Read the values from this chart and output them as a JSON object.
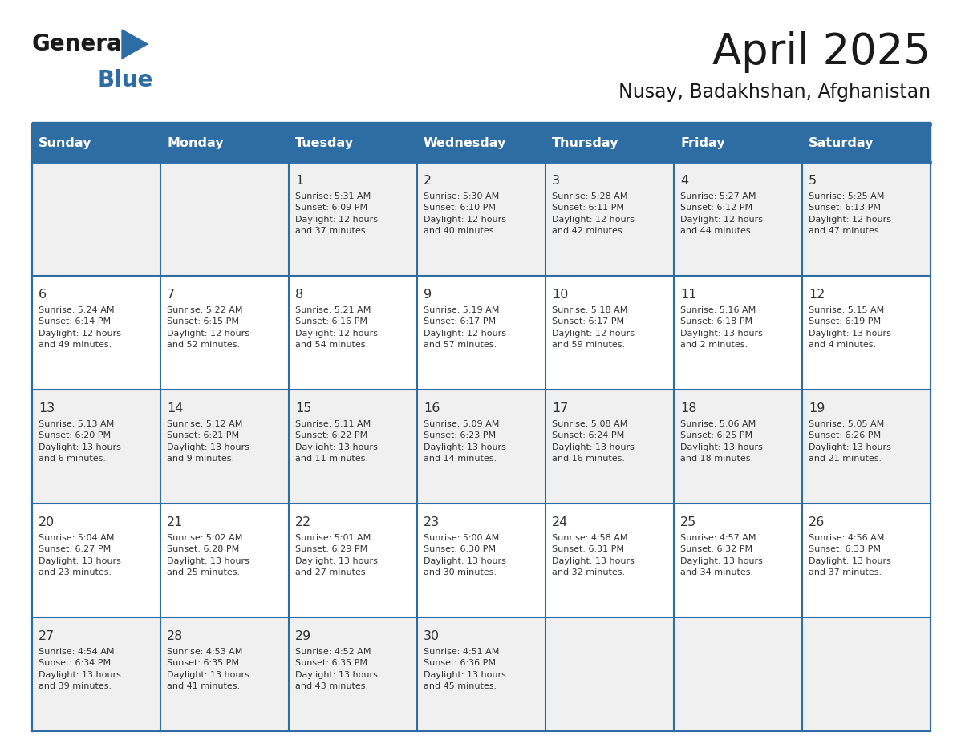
{
  "title": "April 2025",
  "subtitle": "Nusay, Badakhshan, Afghanistan",
  "header_bg": "#2E6DA4",
  "header_text_color": "#FFFFFF",
  "cell_bg_odd": "#F0F0F0",
  "cell_bg_even": "#FFFFFF",
  "border_color": "#2E6DA4",
  "text_color": "#333333",
  "days_of_week": [
    "Sunday",
    "Monday",
    "Tuesday",
    "Wednesday",
    "Thursday",
    "Friday",
    "Saturday"
  ],
  "calendar_data": [
    [
      {
        "day": "",
        "info": ""
      },
      {
        "day": "",
        "info": ""
      },
      {
        "day": "1",
        "info": "Sunrise: 5:31 AM\nSunset: 6:09 PM\nDaylight: 12 hours\nand 37 minutes."
      },
      {
        "day": "2",
        "info": "Sunrise: 5:30 AM\nSunset: 6:10 PM\nDaylight: 12 hours\nand 40 minutes."
      },
      {
        "day": "3",
        "info": "Sunrise: 5:28 AM\nSunset: 6:11 PM\nDaylight: 12 hours\nand 42 minutes."
      },
      {
        "day": "4",
        "info": "Sunrise: 5:27 AM\nSunset: 6:12 PM\nDaylight: 12 hours\nand 44 minutes."
      },
      {
        "day": "5",
        "info": "Sunrise: 5:25 AM\nSunset: 6:13 PM\nDaylight: 12 hours\nand 47 minutes."
      }
    ],
    [
      {
        "day": "6",
        "info": "Sunrise: 5:24 AM\nSunset: 6:14 PM\nDaylight: 12 hours\nand 49 minutes."
      },
      {
        "day": "7",
        "info": "Sunrise: 5:22 AM\nSunset: 6:15 PM\nDaylight: 12 hours\nand 52 minutes."
      },
      {
        "day": "8",
        "info": "Sunrise: 5:21 AM\nSunset: 6:16 PM\nDaylight: 12 hours\nand 54 minutes."
      },
      {
        "day": "9",
        "info": "Sunrise: 5:19 AM\nSunset: 6:17 PM\nDaylight: 12 hours\nand 57 minutes."
      },
      {
        "day": "10",
        "info": "Sunrise: 5:18 AM\nSunset: 6:17 PM\nDaylight: 12 hours\nand 59 minutes."
      },
      {
        "day": "11",
        "info": "Sunrise: 5:16 AM\nSunset: 6:18 PM\nDaylight: 13 hours\nand 2 minutes."
      },
      {
        "day": "12",
        "info": "Sunrise: 5:15 AM\nSunset: 6:19 PM\nDaylight: 13 hours\nand 4 minutes."
      }
    ],
    [
      {
        "day": "13",
        "info": "Sunrise: 5:13 AM\nSunset: 6:20 PM\nDaylight: 13 hours\nand 6 minutes."
      },
      {
        "day": "14",
        "info": "Sunrise: 5:12 AM\nSunset: 6:21 PM\nDaylight: 13 hours\nand 9 minutes."
      },
      {
        "day": "15",
        "info": "Sunrise: 5:11 AM\nSunset: 6:22 PM\nDaylight: 13 hours\nand 11 minutes."
      },
      {
        "day": "16",
        "info": "Sunrise: 5:09 AM\nSunset: 6:23 PM\nDaylight: 13 hours\nand 14 minutes."
      },
      {
        "day": "17",
        "info": "Sunrise: 5:08 AM\nSunset: 6:24 PM\nDaylight: 13 hours\nand 16 minutes."
      },
      {
        "day": "18",
        "info": "Sunrise: 5:06 AM\nSunset: 6:25 PM\nDaylight: 13 hours\nand 18 minutes."
      },
      {
        "day": "19",
        "info": "Sunrise: 5:05 AM\nSunset: 6:26 PM\nDaylight: 13 hours\nand 21 minutes."
      }
    ],
    [
      {
        "day": "20",
        "info": "Sunrise: 5:04 AM\nSunset: 6:27 PM\nDaylight: 13 hours\nand 23 minutes."
      },
      {
        "day": "21",
        "info": "Sunrise: 5:02 AM\nSunset: 6:28 PM\nDaylight: 13 hours\nand 25 minutes."
      },
      {
        "day": "22",
        "info": "Sunrise: 5:01 AM\nSunset: 6:29 PM\nDaylight: 13 hours\nand 27 minutes."
      },
      {
        "day": "23",
        "info": "Sunrise: 5:00 AM\nSunset: 6:30 PM\nDaylight: 13 hours\nand 30 minutes."
      },
      {
        "day": "24",
        "info": "Sunrise: 4:58 AM\nSunset: 6:31 PM\nDaylight: 13 hours\nand 32 minutes."
      },
      {
        "day": "25",
        "info": "Sunrise: 4:57 AM\nSunset: 6:32 PM\nDaylight: 13 hours\nand 34 minutes."
      },
      {
        "day": "26",
        "info": "Sunrise: 4:56 AM\nSunset: 6:33 PM\nDaylight: 13 hours\nand 37 minutes."
      }
    ],
    [
      {
        "day": "27",
        "info": "Sunrise: 4:54 AM\nSunset: 6:34 PM\nDaylight: 13 hours\nand 39 minutes."
      },
      {
        "day": "28",
        "info": "Sunrise: 4:53 AM\nSunset: 6:35 PM\nDaylight: 13 hours\nand 41 minutes."
      },
      {
        "day": "29",
        "info": "Sunrise: 4:52 AM\nSunset: 6:35 PM\nDaylight: 13 hours\nand 43 minutes."
      },
      {
        "day": "30",
        "info": "Sunrise: 4:51 AM\nSunset: 6:36 PM\nDaylight: 13 hours\nand 45 minutes."
      },
      {
        "day": "",
        "info": ""
      },
      {
        "day": "",
        "info": ""
      },
      {
        "day": "",
        "info": ""
      }
    ]
  ],
  "logo_text1_color": "#1a1a1a",
  "logo_text2_color": "#2E6DA4",
  "logo_triangle_color": "#2E6DA4"
}
